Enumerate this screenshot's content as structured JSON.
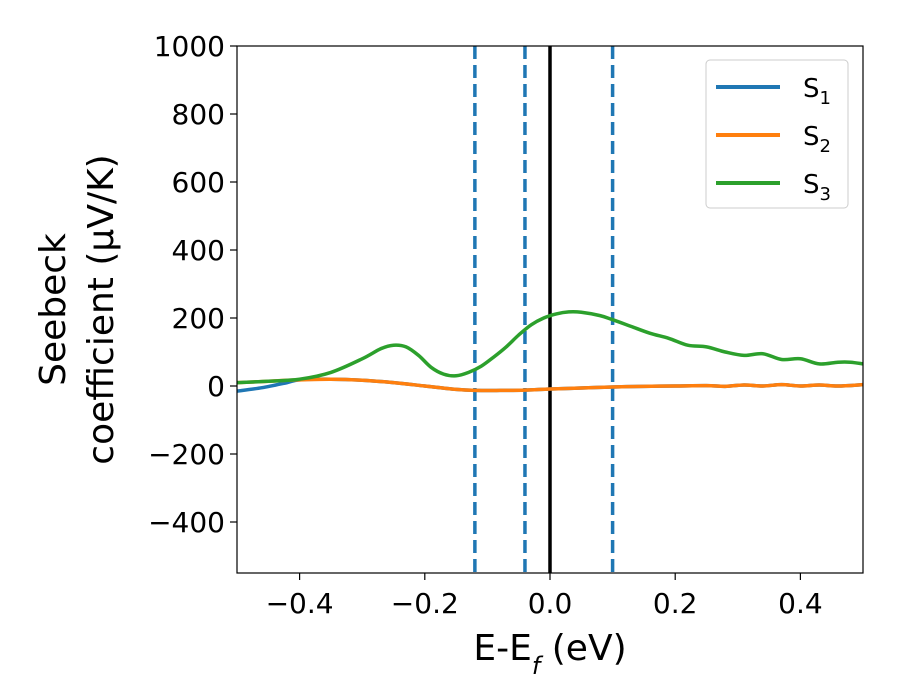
{
  "chart_data": {
    "type": "line",
    "title": "",
    "xlabel": "E-E",
    "xlabel_sub": "f",
    "xlabel_unit": " (eV)",
    "ylabel_line1": "Seebeck",
    "ylabel_line2": "coefficient  (μV/K)",
    "xlim": [
      -0.5,
      0.5
    ],
    "ylim": [
      -550,
      1000
    ],
    "xticks": [
      -0.4,
      -0.2,
      0.0,
      0.2,
      0.4
    ],
    "xtick_labels": [
      "−0.4",
      "−0.2",
      "0.0",
      "0.2",
      "0.4"
    ],
    "yticks": [
      -400,
      -200,
      0,
      200,
      400,
      600,
      800,
      1000
    ],
    "ytick_labels": [
      "−400",
      "−200",
      "0",
      "200",
      "400",
      "600",
      "800",
      "1000"
    ],
    "legend_position": "top-right",
    "grid": false,
    "vertical_lines": [
      {
        "x": -0.12,
        "style": "dashed",
        "color": "#1f77b4"
      },
      {
        "x": -0.04,
        "style": "dashed",
        "color": "#1f77b4"
      },
      {
        "x": 0.0,
        "style": "solid",
        "color": "#000000"
      },
      {
        "x": 0.1,
        "style": "dashed",
        "color": "#1f77b4"
      }
    ],
    "series": [
      {
        "name": "S",
        "sub": "1",
        "color": "#1f77b4",
        "x": [
          -0.5,
          -0.46,
          -0.42,
          -0.4,
          -0.35,
          -0.3,
          -0.25,
          -0.2,
          -0.15,
          -0.12,
          -0.08,
          -0.04,
          0.0,
          0.05,
          0.1,
          0.15,
          0.2,
          0.25,
          0.28,
          0.31,
          0.34,
          0.37,
          0.4,
          0.43,
          0.46,
          0.5
        ],
        "y": [
          -15,
          -5,
          10,
          18,
          20,
          17,
          10,
          0,
          -10,
          -13,
          -13,
          -12,
          -9,
          -6,
          -3,
          -1,
          0,
          1,
          -1,
          3,
          0,
          4,
          0,
          3,
          0,
          4
        ]
      },
      {
        "name": "S",
        "sub": "2",
        "color": "#ff7f0e",
        "x": [
          -0.5,
          -0.46,
          -0.42,
          -0.4,
          -0.35,
          -0.3,
          -0.25,
          -0.2,
          -0.15,
          -0.12,
          -0.08,
          -0.04,
          0.0,
          0.05,
          0.1,
          0.15,
          0.2,
          0.25,
          0.28,
          0.31,
          0.34,
          0.37,
          0.4,
          0.43,
          0.46,
          0.5
        ],
        "y": [
          10,
          13,
          17,
          18,
          20,
          17,
          10,
          0,
          -10,
          -13,
          -13,
          -12,
          -9,
          -6,
          -3,
          -1,
          0,
          1,
          -1,
          3,
          0,
          4,
          0,
          3,
          0,
          4
        ]
      },
      {
        "name": "S",
        "sub": "3",
        "color": "#2ca02c",
        "x": [
          -0.5,
          -0.45,
          -0.4,
          -0.35,
          -0.3,
          -0.27,
          -0.25,
          -0.23,
          -0.21,
          -0.19,
          -0.17,
          -0.15,
          -0.13,
          -0.11,
          -0.09,
          -0.07,
          -0.05,
          -0.03,
          -0.01,
          0.01,
          0.03,
          0.05,
          0.08,
          0.1,
          0.13,
          0.16,
          0.19,
          0.22,
          0.25,
          0.28,
          0.31,
          0.34,
          0.37,
          0.4,
          0.43,
          0.46,
          0.48,
          0.5
        ],
        "y": [
          10,
          14,
          20,
          40,
          80,
          110,
          120,
          115,
          90,
          55,
          35,
          30,
          40,
          58,
          85,
          115,
          150,
          180,
          200,
          212,
          218,
          217,
          207,
          195,
          175,
          155,
          140,
          120,
          115,
          100,
          90,
          95,
          78,
          80,
          65,
          70,
          70,
          65
        ]
      }
    ]
  }
}
